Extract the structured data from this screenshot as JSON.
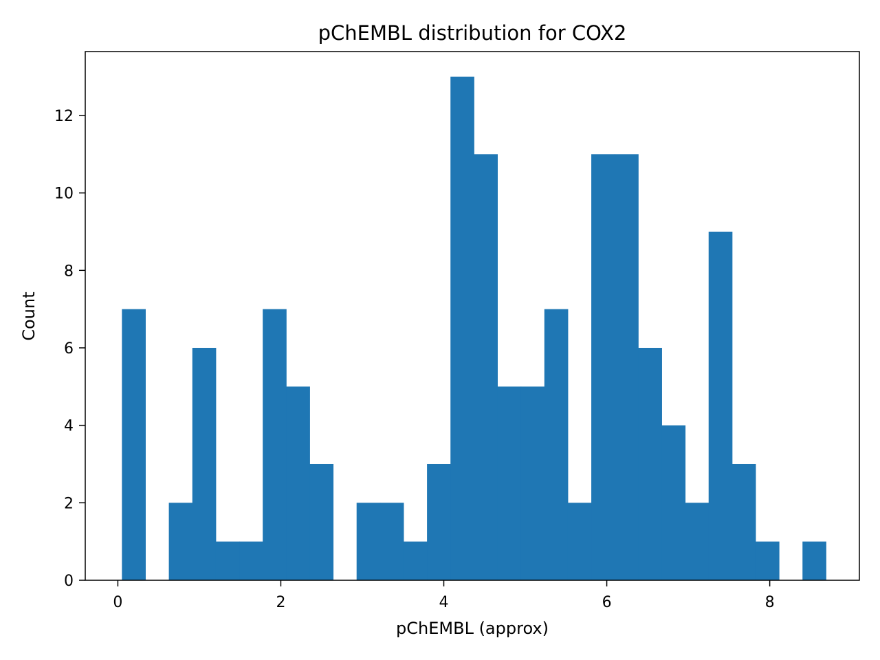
{
  "chart_data": {
    "type": "bar",
    "title": "pChEMBL distribution for COX2",
    "xlabel": "pChEMBL (approx)",
    "ylabel": "Count",
    "xlim": [
      -0.4,
      9.1
    ],
    "ylim": [
      0,
      13.65
    ],
    "xticks": [
      0,
      2,
      4,
      6,
      8
    ],
    "yticks": [
      0,
      2,
      4,
      6,
      8,
      10,
      12
    ],
    "grid": false,
    "legend": "none",
    "bar_color": "#1f77b4",
    "bins": [
      {
        "x0": 0.05,
        "x1": 0.338,
        "count": 7
      },
      {
        "x0": 0.338,
        "x1": 0.626,
        "count": 0
      },
      {
        "x0": 0.626,
        "x1": 0.914,
        "count": 2
      },
      {
        "x0": 0.914,
        "x1": 1.202,
        "count": 6
      },
      {
        "x0": 1.202,
        "x1": 1.49,
        "count": 1
      },
      {
        "x0": 1.49,
        "x1": 1.778,
        "count": 1
      },
      {
        "x0": 1.778,
        "x1": 2.066,
        "count": 7
      },
      {
        "x0": 2.066,
        "x1": 2.354,
        "count": 5
      },
      {
        "x0": 2.354,
        "x1": 2.642,
        "count": 3
      },
      {
        "x0": 2.642,
        "x1": 2.93,
        "count": 0
      },
      {
        "x0": 2.93,
        "x1": 3.218,
        "count": 2
      },
      {
        "x0": 3.218,
        "x1": 3.506,
        "count": 2
      },
      {
        "x0": 3.506,
        "x1": 3.794,
        "count": 1
      },
      {
        "x0": 3.794,
        "x1": 4.082,
        "count": 3
      },
      {
        "x0": 4.082,
        "x1": 4.37,
        "count": 13
      },
      {
        "x0": 4.37,
        "x1": 4.658,
        "count": 11
      },
      {
        "x0": 4.658,
        "x1": 4.946,
        "count": 5
      },
      {
        "x0": 4.946,
        "x1": 5.234,
        "count": 5
      },
      {
        "x0": 5.234,
        "x1": 5.522,
        "count": 7
      },
      {
        "x0": 5.522,
        "x1": 5.81,
        "count": 2
      },
      {
        "x0": 5.81,
        "x1": 6.098,
        "count": 11
      },
      {
        "x0": 6.098,
        "x1": 6.386,
        "count": 11
      },
      {
        "x0": 6.386,
        "x1": 6.674,
        "count": 6
      },
      {
        "x0": 6.674,
        "x1": 6.962,
        "count": 4
      },
      {
        "x0": 6.962,
        "x1": 7.25,
        "count": 2
      },
      {
        "x0": 7.25,
        "x1": 7.538,
        "count": 9
      },
      {
        "x0": 7.538,
        "x1": 7.826,
        "count": 3
      },
      {
        "x0": 7.826,
        "x1": 8.114,
        "count": 1
      },
      {
        "x0": 8.114,
        "x1": 8.402,
        "count": 0
      },
      {
        "x0": 8.402,
        "x1": 8.69,
        "count": 1
      }
    ]
  }
}
